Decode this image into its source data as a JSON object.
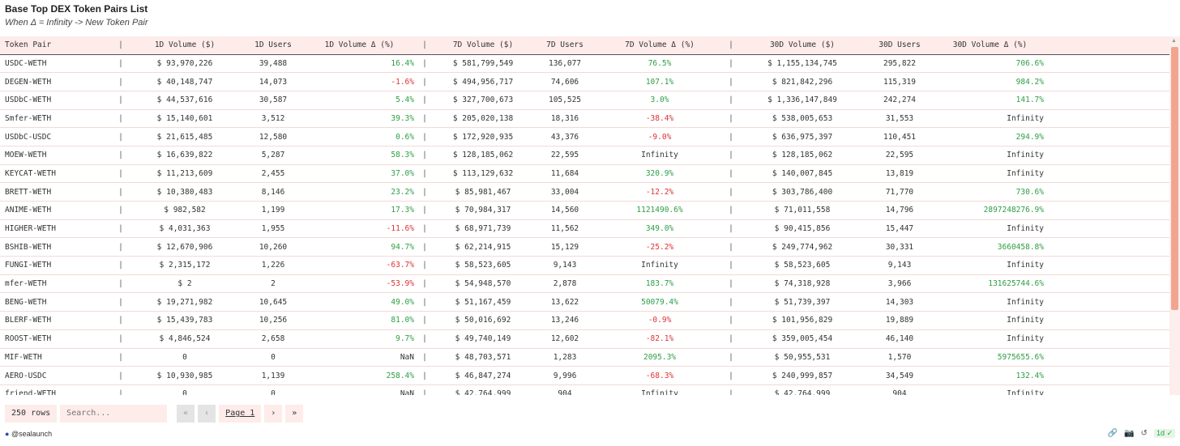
{
  "title": "Base Top DEX Token Pairs List",
  "subtitle": "When Δ = Infinity -> New Token Pair",
  "columns": {
    "pair": "Token Pair",
    "sep": "|",
    "v1d": "1D Volume ($)",
    "u1d": "1D Users",
    "d1d": "1D Volume Δ (%)",
    "v7d": "7D Volume ($)",
    "u7d": "7D Users",
    "d7d": "7D Volume Δ (%)",
    "v30d": "30D Volume ($)",
    "u30d": "30D Users",
    "d30d": "30D Volume Δ (%)"
  },
  "rows": [
    {
      "pair": "USDC-WETH",
      "v1d": "$ 93,970,226",
      "u1d": "39,488",
      "d1d": "16.4%",
      "d1s": "pos",
      "v7d": "$ 581,799,549",
      "u7d": "136,077",
      "d7d": "76.5%",
      "d7s": "pos",
      "v30d": "$ 1,155,134,745",
      "u30d": "295,822",
      "d30d": "706.6%",
      "d30s": "pos"
    },
    {
      "pair": "DEGEN-WETH",
      "v1d": "$ 40,148,747",
      "u1d": "14,073",
      "d1d": "-1.6%",
      "d1s": "neg",
      "v7d": "$ 494,956,717",
      "u7d": "74,606",
      "d7d": "107.1%",
      "d7s": "pos",
      "v30d": "$ 821,842,296",
      "u30d": "115,319",
      "d30d": "984.2%",
      "d30s": "pos"
    },
    {
      "pair": "USDbC-WETH",
      "v1d": "$ 44,537,616",
      "u1d": "30,587",
      "d1d": "5.4%",
      "d1s": "pos",
      "v7d": "$ 327,700,673",
      "u7d": "105,525",
      "d7d": "3.0%",
      "d7s": "pos",
      "v30d": "$ 1,336,147,849",
      "u30d": "242,274",
      "d30d": "141.7%",
      "d30s": "pos"
    },
    {
      "pair": "Smfer-WETH",
      "v1d": "$ 15,140,601",
      "u1d": "3,512",
      "d1d": "39.3%",
      "d1s": "pos",
      "v7d": "$ 205,020,138",
      "u7d": "18,316",
      "d7d": "-38.4%",
      "d7s": "neg",
      "v30d": "$ 538,005,653",
      "u30d": "31,553",
      "d30d": "Infinity",
      "d30s": "neu"
    },
    {
      "pair": "USDbC-USDC",
      "v1d": "$ 21,615,485",
      "u1d": "12,580",
      "d1d": "0.6%",
      "d1s": "pos",
      "v7d": "$ 172,920,935",
      "u7d": "43,376",
      "d7d": "-9.0%",
      "d7s": "neg",
      "v30d": "$ 636,975,397",
      "u30d": "110,451",
      "d30d": "294.9%",
      "d30s": "pos"
    },
    {
      "pair": "MOEW-WETH",
      "v1d": "$ 16,639,822",
      "u1d": "5,287",
      "d1d": "58.3%",
      "d1s": "pos",
      "v7d": "$ 128,185,062",
      "u7d": "22,595",
      "d7d": "Infinity",
      "d7s": "neu",
      "v30d": "$ 128,185,062",
      "u30d": "22,595",
      "d30d": "Infinity",
      "d30s": "neu"
    },
    {
      "pair": "KEYCAT-WETH",
      "v1d": "$ 11,213,609",
      "u1d": "2,455",
      "d1d": "37.0%",
      "d1s": "pos",
      "v7d": "$ 113,129,632",
      "u7d": "11,684",
      "d7d": "320.9%",
      "d7s": "pos",
      "v30d": "$ 140,007,845",
      "u30d": "13,819",
      "d30d": "Infinity",
      "d30s": "neu"
    },
    {
      "pair": "BRETT-WETH",
      "v1d": "$ 10,380,483",
      "u1d": "8,146",
      "d1d": "23.2%",
      "d1s": "pos",
      "v7d": "$ 85,981,467",
      "u7d": "33,004",
      "d7d": "-12.2%",
      "d7s": "neg",
      "v30d": "$ 303,786,400",
      "u30d": "71,770",
      "d30d": "730.6%",
      "d30s": "pos"
    },
    {
      "pair": "ANIME-WETH",
      "v1d": "$ 982,582",
      "u1d": "1,199",
      "d1d": "17.3%",
      "d1s": "pos",
      "v7d": "$ 70,984,317",
      "u7d": "14,560",
      "d7d": "1121490.6%",
      "d7s": "pos",
      "v30d": "$ 71,011,558",
      "u30d": "14,796",
      "d30d": "2897248276.9%",
      "d30s": "pos"
    },
    {
      "pair": "HIGHER-WETH",
      "v1d": "$ 4,031,363",
      "u1d": "1,955",
      "d1d": "-11.6%",
      "d1s": "neg",
      "v7d": "$ 68,971,739",
      "u7d": "11,562",
      "d7d": "349.0%",
      "d7s": "pos",
      "v30d": "$ 90,415,856",
      "u30d": "15,447",
      "d30d": "Infinity",
      "d30s": "neu"
    },
    {
      "pair": "BSHIB-WETH",
      "v1d": "$ 12,670,906",
      "u1d": "10,260",
      "d1d": "94.7%",
      "d1s": "pos",
      "v7d": "$ 62,214,915",
      "u7d": "15,129",
      "d7d": "-25.2%",
      "d7s": "neg",
      "v30d": "$ 249,774,962",
      "u30d": "30,331",
      "d30d": "3660458.8%",
      "d30s": "pos"
    },
    {
      "pair": "FUNGI-WETH",
      "v1d": "$ 2,315,172",
      "u1d": "1,226",
      "d1d": "-63.7%",
      "d1s": "neg",
      "v7d": "$ 58,523,605",
      "u7d": "9,143",
      "d7d": "Infinity",
      "d7s": "neu",
      "v30d": "$ 58,523,605",
      "u30d": "9,143",
      "d30d": "Infinity",
      "d30s": "neu"
    },
    {
      "pair": "mfer-WETH",
      "v1d": "$ 2",
      "u1d": "2",
      "d1d": "-53.9%",
      "d1s": "neg",
      "v7d": "$ 54,948,570",
      "u7d": "2,878",
      "d7d": "183.7%",
      "d7s": "pos",
      "v30d": "$ 74,318,928",
      "u30d": "3,966",
      "d30d": "131625744.6%",
      "d30s": "pos"
    },
    {
      "pair": "BENG-WETH",
      "v1d": "$ 19,271,982",
      "u1d": "10,645",
      "d1d": "49.0%",
      "d1s": "pos",
      "v7d": "$ 51,167,459",
      "u7d": "13,622",
      "d7d": "50079.4%",
      "d7s": "pos",
      "v30d": "$ 51,739,397",
      "u30d": "14,303",
      "d30d": "Infinity",
      "d30s": "neu"
    },
    {
      "pair": "BLERF-WETH",
      "v1d": "$ 15,439,783",
      "u1d": "10,256",
      "d1d": "81.0%",
      "d1s": "pos",
      "v7d": "$ 50,016,692",
      "u7d": "13,246",
      "d7d": "-0.9%",
      "d7s": "neg",
      "v30d": "$ 101,956,829",
      "u30d": "19,889",
      "d30d": "Infinity",
      "d30s": "neu"
    },
    {
      "pair": "ROOST-WETH",
      "v1d": "$ 4,846,524",
      "u1d": "2,658",
      "d1d": "9.7%",
      "d1s": "pos",
      "v7d": "$ 49,740,149",
      "u7d": "12,602",
      "d7d": "-82.1%",
      "d7s": "neg",
      "v30d": "$ 359,005,454",
      "u30d": "46,140",
      "d30d": "Infinity",
      "d30s": "neu"
    },
    {
      "pair": "MIF-WETH",
      "v1d": "0",
      "u1d": "0",
      "d1d": "NaN",
      "d1s": "neu",
      "v7d": "$ 48,703,571",
      "u7d": "1,283",
      "d7d": "2095.3%",
      "d7s": "pos",
      "v30d": "$ 50,955,531",
      "u30d": "1,570",
      "d30d": "5975655.6%",
      "d30s": "pos"
    },
    {
      "pair": "AERO-USDC",
      "v1d": "$ 10,930,985",
      "u1d": "1,139",
      "d1d": "258.4%",
      "d1s": "pos",
      "v7d": "$ 46,847,274",
      "u7d": "9,996",
      "d7d": "-68.3%",
      "d7s": "neg",
      "v30d": "$ 240,999,857",
      "u30d": "34,549",
      "d30d": "132.4%",
      "d30s": "pos"
    },
    {
      "pair": "friend-WETH",
      "v1d": "0",
      "u1d": "0",
      "d1d": "NaN",
      "d1s": "neu",
      "v7d": "$ 42,764,999",
      "u7d": "904",
      "d7d": "Infinity",
      "d7s": "neu",
      "v30d": "$ 42,764,999",
      "u30d": "904",
      "d30d": "Infinity",
      "d30s": "neu"
    }
  ],
  "footer": {
    "row_count": "250 rows",
    "search_placeholder": "Search...",
    "first_icon": "«",
    "prev_icon": "‹",
    "page_label": "Page 1",
    "next_icon": "›",
    "last_icon": "»",
    "credit": "@sealaunch",
    "credit_icon": "sealaunch-logo-icon",
    "period_badge": "1d"
  },
  "colors": {
    "positive": "#2e9e45",
    "negative": "#e03131",
    "header_bg": "#fdecea",
    "scroll_thumb": "#f2a48f"
  }
}
